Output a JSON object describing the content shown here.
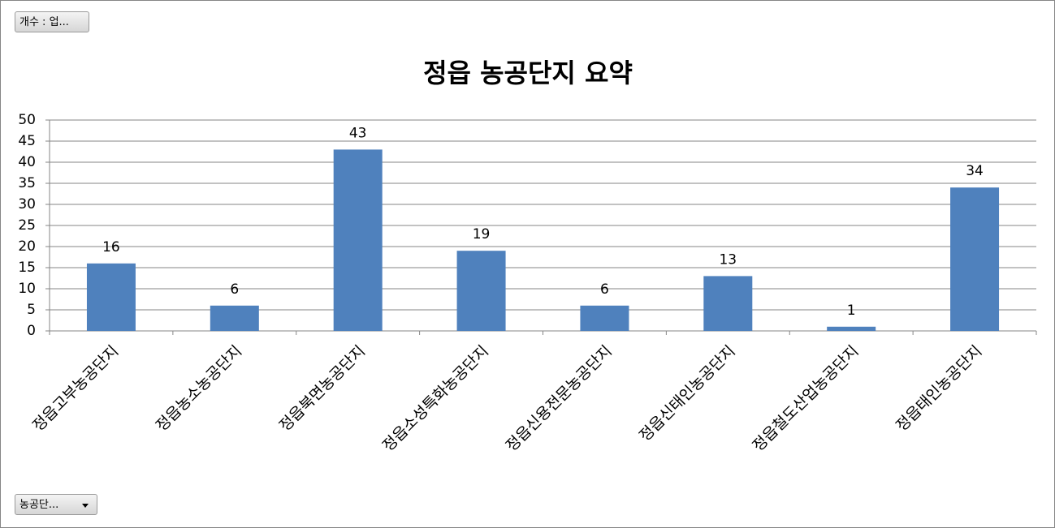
{
  "chart_data": {
    "type": "bar",
    "title": "정읍 농공단지 요약",
    "value_field_button": "개수 : 업...",
    "axis_field_button": "농공단...",
    "categories": [
      "정읍고부농공단지",
      "정읍농소농공단지",
      "정읍북면농공단지",
      "정읍소성특화농공단지",
      "정읍신용전문농공단지",
      "정읍신태인농공단지",
      "정읍철도산업농공단지",
      "정읍태인농공단지"
    ],
    "values": [
      16,
      6,
      43,
      19,
      6,
      13,
      1,
      34
    ],
    "color": "#4f81bd",
    "ylim": [
      0,
      50
    ],
    "yticks": [
      0,
      5,
      10,
      15,
      20,
      25,
      30,
      35,
      40,
      45,
      50
    ],
    "grid": true,
    "data_labels": true
  }
}
